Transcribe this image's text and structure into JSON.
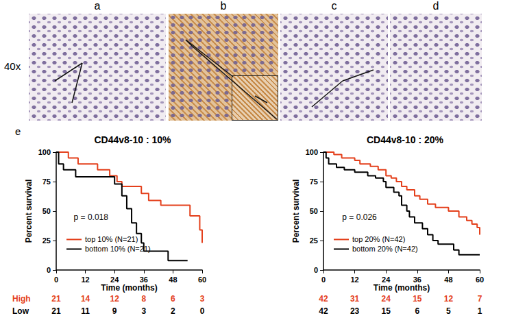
{
  "figure": {
    "magnification": "40x",
    "panels": [
      "a",
      "b",
      "c",
      "d"
    ],
    "chart_panel": "e"
  },
  "risk_table": {
    "row_names": [
      "High",
      "Low"
    ],
    "colors": [
      "#e4401c",
      "#000000"
    ]
  },
  "chart_data": [
    {
      "type": "line",
      "line_style": "step",
      "title": "CD44v8-10 : 10%",
      "x_label": "Time (months)",
      "y_label": "Percent survival",
      "xlim": [
        0,
        60
      ],
      "xticks": [
        0,
        12,
        24,
        36,
        48,
        60
      ],
      "ylim": [
        0,
        100
      ],
      "yticks": [
        0,
        25,
        50,
        75,
        100
      ],
      "grid": false,
      "legend": "lower left",
      "annotation": "p = 0.018",
      "series": [
        {
          "name": "top 10% (N=21)",
          "color": "#e4401c",
          "x": [
            0,
            5,
            9,
            17,
            22,
            25,
            27,
            35,
            38,
            43,
            55,
            59,
            60
          ],
          "values": [
            100,
            95,
            90,
            85,
            80,
            75,
            71,
            65,
            59,
            55,
            46,
            34,
            23
          ]
        },
        {
          "name": "bottom 10% (N=21)",
          "color": "#000000",
          "x": [
            0,
            1,
            3,
            8,
            24,
            27,
            29,
            31,
            33,
            35,
            36,
            46,
            54
          ],
          "values": [
            100,
            90,
            85,
            79,
            73,
            63,
            52,
            40,
            31,
            23,
            16,
            8,
            8
          ]
        }
      ],
      "at_risk": [
        [
          21,
          14,
          12,
          8,
          6,
          3
        ],
        [
          21,
          11,
          9,
          3,
          2,
          0
        ]
      ]
    },
    {
      "type": "line",
      "line_style": "step",
      "title": "CD44v8-10 : 20%",
      "x_label": "Time (months)",
      "y_label": "Percent survival",
      "xlim": [
        0,
        60
      ],
      "xticks": [
        0,
        12,
        24,
        36,
        48,
        60
      ],
      "ylim": [
        0,
        100
      ],
      "yticks": [
        0,
        25,
        50,
        75,
        100
      ],
      "grid": false,
      "legend": "lower left",
      "annotation": "p = 0.026",
      "series": [
        {
          "name": "top 20% (N=42)",
          "color": "#e4401c",
          "x": [
            0,
            4,
            7,
            12,
            14,
            18,
            21,
            24,
            26,
            28,
            30,
            32,
            35,
            37,
            40,
            43,
            48,
            52,
            55,
            57,
            59,
            60
          ],
          "values": [
            100,
            98,
            95,
            93,
            90,
            88,
            85,
            80,
            78,
            75,
            71,
            68,
            63,
            60,
            56,
            53,
            50,
            45,
            42,
            39,
            36,
            30
          ]
        },
        {
          "name": "bottom 20% (N=42)",
          "color": "#000000",
          "x": [
            0,
            1,
            2,
            5,
            8,
            12,
            17,
            20,
            23,
            24,
            27,
            29,
            30,
            32,
            33,
            35,
            38,
            40,
            42,
            44,
            50,
            52,
            60
          ],
          "values": [
            100,
            95,
            90,
            87,
            85,
            83,
            80,
            78,
            75,
            70,
            66,
            63,
            55,
            50,
            45,
            40,
            35,
            30,
            25,
            22,
            17,
            13,
            13
          ]
        }
      ],
      "at_risk": [
        [
          42,
          31,
          24,
          15,
          12,
          7
        ],
        [
          42,
          23,
          15,
          6,
          5,
          1
        ]
      ]
    }
  ]
}
